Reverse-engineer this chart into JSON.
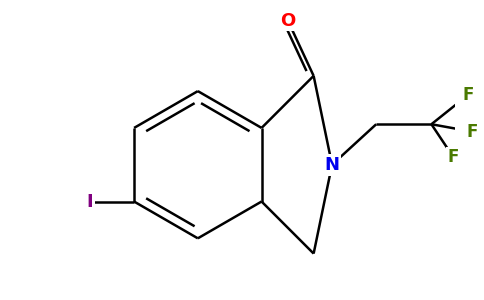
{
  "bg_color": "#ffffff",
  "atom_colors": {
    "O": "#ff0000",
    "N": "#0000ee",
    "F": "#4a7a00",
    "I": "#800080",
    "C": "#000000"
  },
  "bond_color": "#000000",
  "bond_width": 1.8,
  "font_size_atoms": 13,
  "font_size_F": 12
}
